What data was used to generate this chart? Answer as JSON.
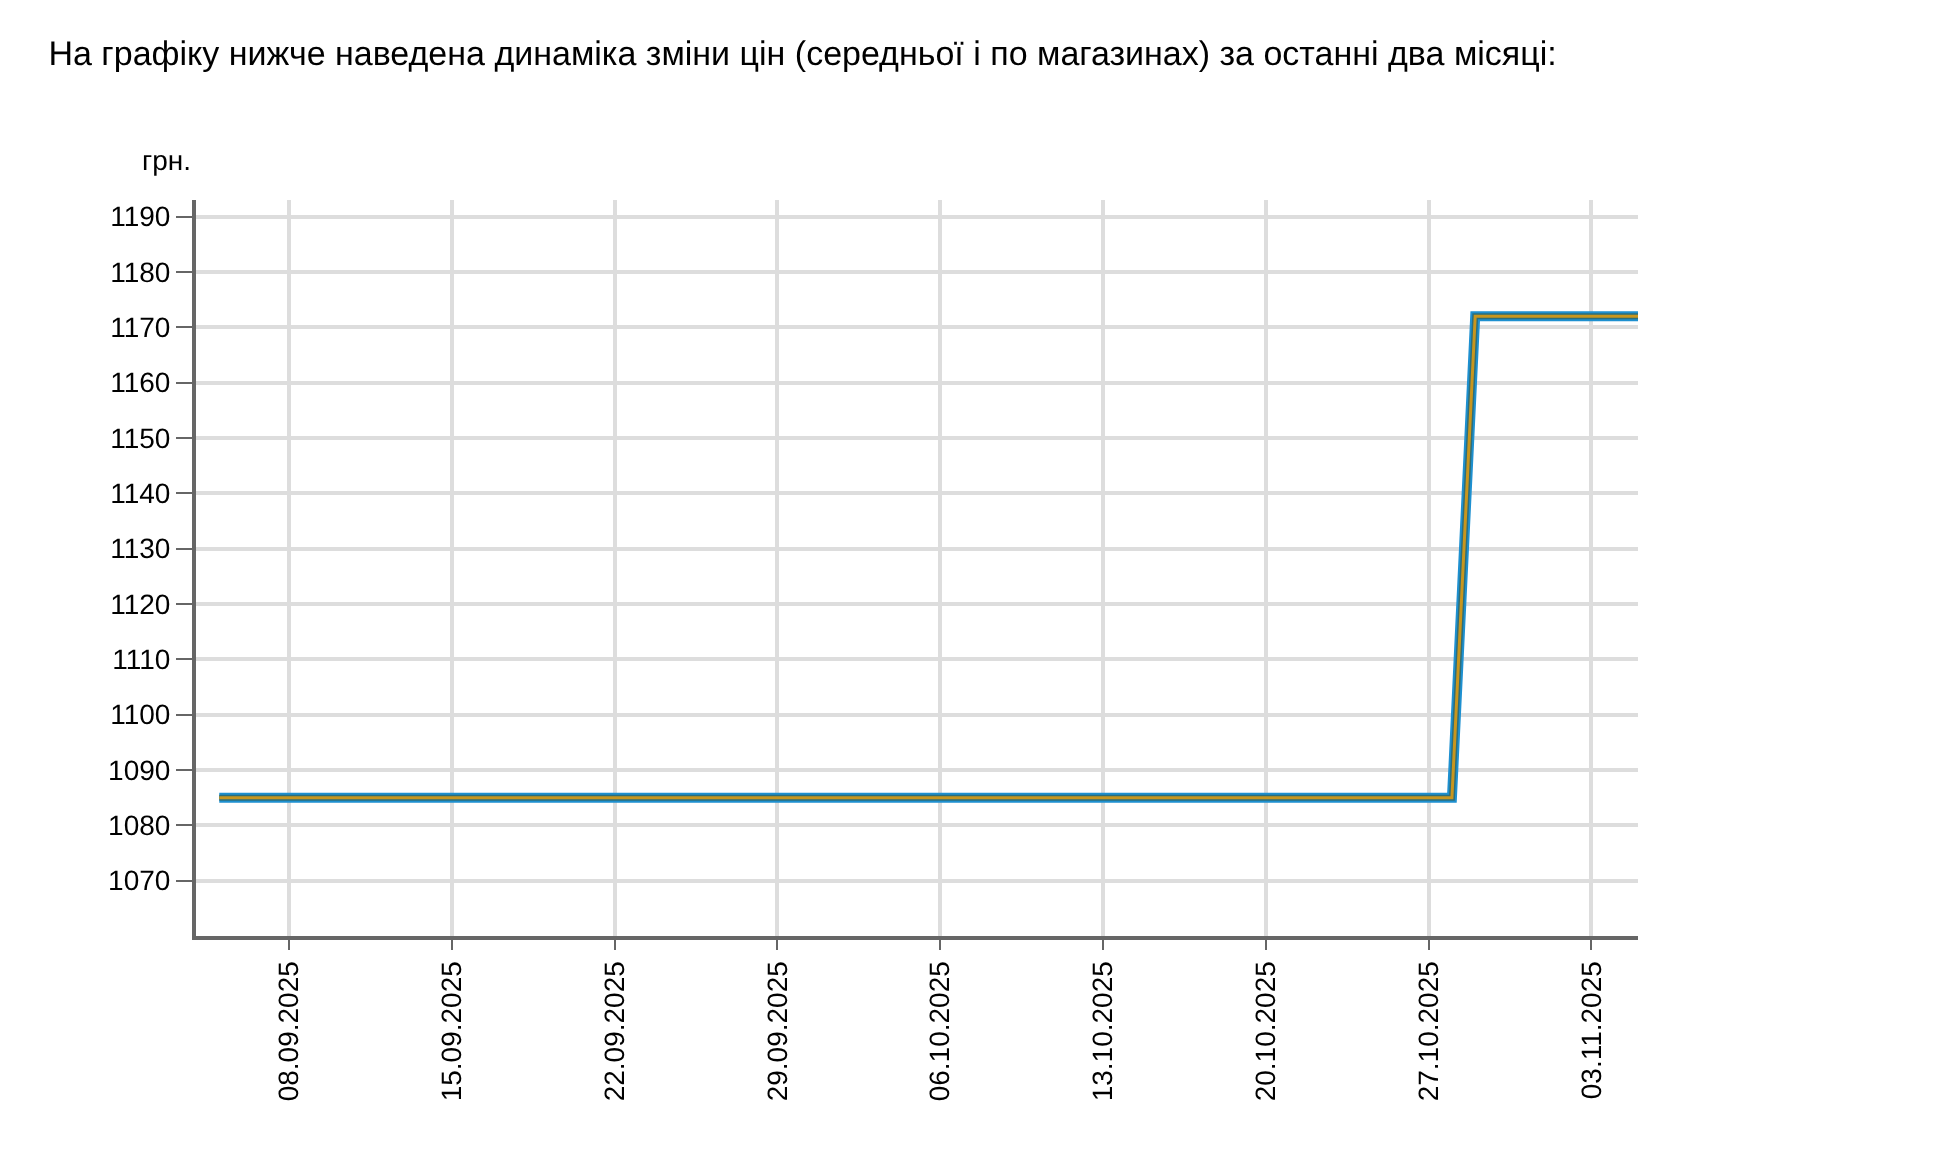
{
  "chart_data": {
    "type": "line",
    "title": "На графіку нижче наведена динаміка зміни цін (середньої і по магазинах) за останні два місяці:",
    "ylabel": "грн.",
    "x": [
      "2025-09-05",
      "2025-10-28",
      "2025-10-29",
      "2025-11-05"
    ],
    "series": [
      {
        "color": "#1e90d0",
        "values": [
          1085,
          1085,
          1172,
          1172
        ]
      },
      {
        "color": "#2e6e78",
        "values": [
          1085,
          1085,
          1172,
          1172
        ]
      },
      {
        "color": "#c8961e",
        "values": [
          1085,
          1085,
          1172,
          1172
        ]
      }
    ],
    "xlim": [
      "2025-09-04",
      "2025-11-05"
    ],
    "xticks": [
      {
        "value": "2025-09-08",
        "label": "08.09.2025"
      },
      {
        "value": "2025-09-15",
        "label": "15.09.2025"
      },
      {
        "value": "2025-09-22",
        "label": "22.09.2025"
      },
      {
        "value": "2025-09-29",
        "label": "29.09.2025"
      },
      {
        "value": "2025-10-06",
        "label": "06.10.2025"
      },
      {
        "value": "2025-10-13",
        "label": "13.10.2025"
      },
      {
        "value": "2025-10-20",
        "label": "20.10.2025"
      },
      {
        "value": "2025-10-27",
        "label": "27.10.2025"
      },
      {
        "value": "2025-11-03",
        "label": "03.11.2025"
      }
    ],
    "ylim": [
      1060,
      1193
    ],
    "yticks": [
      1070,
      1080,
      1090,
      1100,
      1110,
      1120,
      1130,
      1140,
      1150,
      1160,
      1170,
      1180,
      1190
    ],
    "grid": true,
    "marker": "none",
    "line_style": "solid"
  }
}
